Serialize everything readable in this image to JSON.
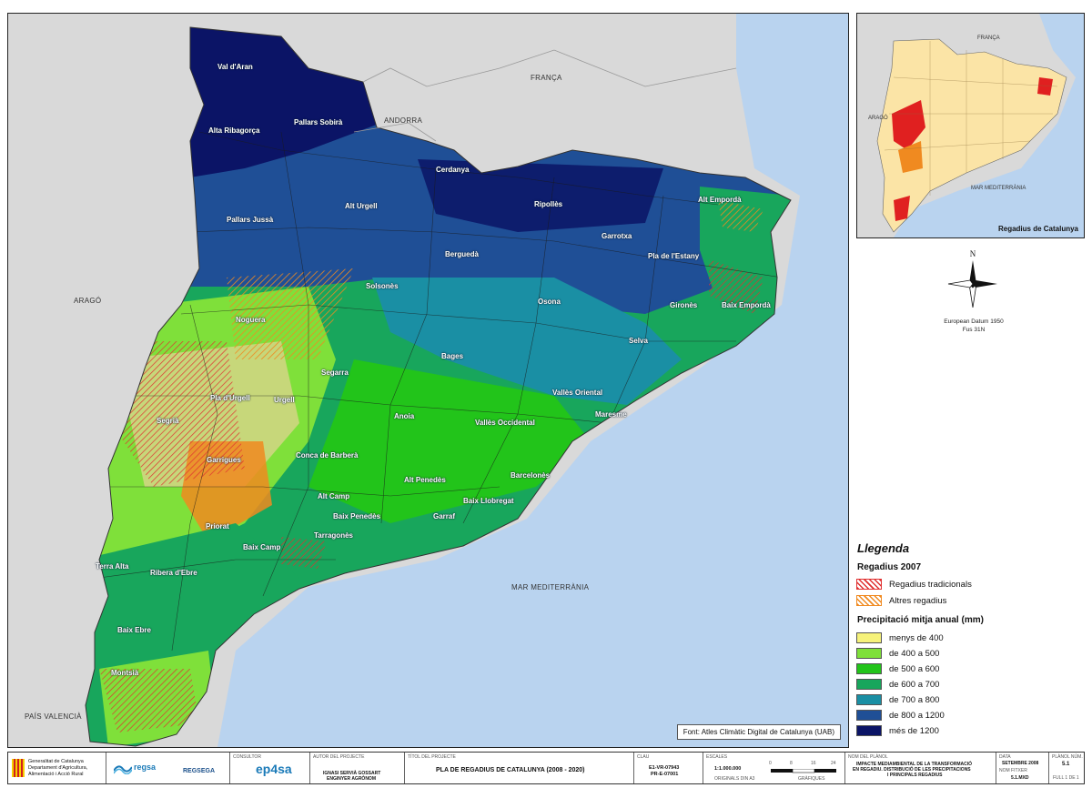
{
  "main_map": {
    "regions": [
      {
        "name": "Val d'Aran"
      },
      {
        "name": "Pallars Sobirà"
      },
      {
        "name": "Alta Ribagorça"
      },
      {
        "name": "Cerdanya"
      },
      {
        "name": "Alt Urgell"
      },
      {
        "name": "Ripollès"
      },
      {
        "name": "Alt Empordà"
      },
      {
        "name": "Pallars Jussà"
      },
      {
        "name": "Berguedà"
      },
      {
        "name": "Garrotxa"
      },
      {
        "name": "Pla de l'Estany"
      },
      {
        "name": "Solsonès"
      },
      {
        "name": "Osona"
      },
      {
        "name": "Gironès"
      },
      {
        "name": "Baix Empordà"
      },
      {
        "name": "Noguera"
      },
      {
        "name": "Selva"
      },
      {
        "name": "Bages"
      },
      {
        "name": "Segarra"
      },
      {
        "name": "Pla d'Urgell"
      },
      {
        "name": "Urgell"
      },
      {
        "name": "Vallès Oriental"
      },
      {
        "name": "Segrià"
      },
      {
        "name": "Anoia"
      },
      {
        "name": "Maresme"
      },
      {
        "name": "Vallès Occidental"
      },
      {
        "name": "Garrigues"
      },
      {
        "name": "Conca de Barberà"
      },
      {
        "name": "Barcelonès"
      },
      {
        "name": "Alt Penedès"
      },
      {
        "name": "Alt Camp"
      },
      {
        "name": "Baix Llobregat"
      },
      {
        "name": "Baix Penedès"
      },
      {
        "name": "Garraf"
      },
      {
        "name": "Priorat"
      },
      {
        "name": "Tarragonès"
      },
      {
        "name": "Baix Camp"
      },
      {
        "name": "Terra Alta"
      },
      {
        "name": "Ribera d'Ebre"
      },
      {
        "name": "Baix Ebre"
      },
      {
        "name": "Montsià"
      }
    ],
    "countries": {
      "franca": "FRANÇA",
      "andorra": "ANDORRA",
      "arago": "ARAGÓ",
      "pais_valencia": "PAÍS VALENCIÀ"
    },
    "sea": "MAR MEDITERRÀNIA",
    "source": "Font: Atles Climàtic Digital de Catalunya (UAB)"
  },
  "inset": {
    "franca": "FRANÇA",
    "arago": "ARAGÓ",
    "sea": "MAR MEDITERRÀNIA",
    "title": "Regadius de Catalunya"
  },
  "north": {
    "letter": "N",
    "datum_line1": "European Datum 1950",
    "datum_line2": "Fus 31N"
  },
  "legend": {
    "title": "Llegenda",
    "irrigation_title": "Regadius 2007",
    "irrigation": [
      {
        "label": "Regadius tradicionals",
        "color": "#e03030"
      },
      {
        "label": "Altres regadius",
        "color": "#f08a20"
      }
    ],
    "precip_title": "Precipitació mitja anual (mm)",
    "precip": [
      {
        "label": "menys de 400",
        "color": "#f6f27a"
      },
      {
        "label": "de 400 a 500",
        "color": "#7fe03a"
      },
      {
        "label": "de 500 a 600",
        "color": "#22c41a"
      },
      {
        "label": "de 600 a 700",
        "color": "#18a65c"
      },
      {
        "label": "de 700 a 800",
        "color": "#1a8fa4"
      },
      {
        "label": "de 800 a 1200",
        "color": "#1f4f96"
      },
      {
        "label": "més de 1200",
        "color": "#0b1466"
      }
    ]
  },
  "footer": {
    "org_line1": "Generalitat de Catalunya",
    "org_line2": "Departament d'Agricultura,",
    "org_line3": "Alimentació i Acció Rural",
    "logo1": "regsa",
    "logo2": "REGSEGA",
    "consultor_label": "CONSULTOR",
    "consultor": "ep4sa",
    "author_label": "AUTOR DEL PROJECTE",
    "author_line1": "IGNASI SERVIÀ GOSSART",
    "author_line2": "ENGINYER AGRÒNOM",
    "project_label": "TÍTOL DEL PROJECTE",
    "project": "PLA DE REGADIUS DE CATALUNYA (2008 - 2020)",
    "key_label": "CLAU",
    "key_line1": "E1-VR-07943",
    "key_line2": "PR-E-07001",
    "scale_label": "ESCALES",
    "scale": "1:1.000.000",
    "scale_sub1": "ORIGINALS DIN A3",
    "scale_sub2": "GRÀFIQUES",
    "scale_ticks": [
      "0",
      "8",
      "16",
      "24"
    ],
    "plan_label": "NOM DEL PLÀNOL",
    "plan_line1": "IMPACTE MEDIAMBIENTAL DE LA TRANSFORMACIÓ",
    "plan_line2": "EN REGADIU. DISTRIBUCIÓ DE LES PRECIPITACIONS",
    "plan_line3": "I PRINCIPALS REGADIUS",
    "date_label": "DATA",
    "date": "SETEMBRE 2008",
    "file_label": "NOM FITXER",
    "file": "5.1.MXD",
    "sheet_label": "PLÀNOL NÚM.",
    "sheet": "5.1",
    "sheet_count": "FULL 1 DE 1"
  }
}
